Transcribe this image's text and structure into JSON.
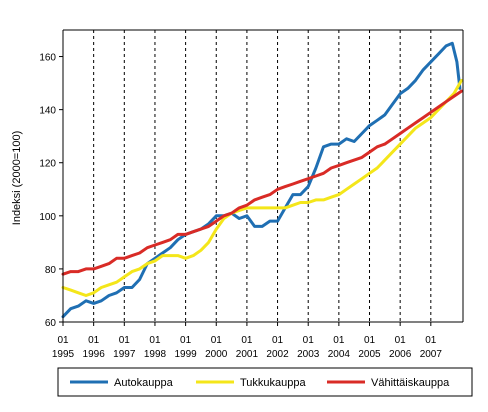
{
  "chart_data": {
    "type": "line",
    "ylabel": "Indeksi (2000=100)",
    "xlabel": "",
    "ylim": [
      60,
      170
    ],
    "yticks": [
      60,
      80,
      100,
      120,
      140,
      160
    ],
    "xlim": [
      1995.0,
      2008.05
    ],
    "x_ticks": [
      {
        "month": "01",
        "year": "1995"
      },
      {
        "month": "01",
        "year": "1996"
      },
      {
        "month": "01",
        "year": "1997"
      },
      {
        "month": "01",
        "year": "1998"
      },
      {
        "month": "01",
        "year": "1999"
      },
      {
        "month": "01",
        "year": "2000"
      },
      {
        "month": "01",
        "year": "2001"
      },
      {
        "month": "01",
        "year": "2002"
      },
      {
        "month": "01",
        "year": "2003"
      },
      {
        "month": "01",
        "year": "2004"
      },
      {
        "month": "01",
        "year": "2005"
      },
      {
        "month": "01",
        "year": "2006"
      },
      {
        "month": "01",
        "year": "2007"
      }
    ],
    "grid": "vertical dashed lines at each year",
    "legend_position": "bottom",
    "series": [
      {
        "name": "Autokauppa",
        "color": "#1f6fb3",
        "points": [
          [
            1995.0,
            62
          ],
          [
            1995.25,
            65
          ],
          [
            1995.5,
            66
          ],
          [
            1995.75,
            68
          ],
          [
            1996.0,
            67
          ],
          [
            1996.25,
            68
          ],
          [
            1996.5,
            70
          ],
          [
            1996.75,
            71
          ],
          [
            1997.0,
            73
          ],
          [
            1997.25,
            73
          ],
          [
            1997.5,
            76
          ],
          [
            1997.75,
            82
          ],
          [
            1998.0,
            84
          ],
          [
            1998.25,
            86
          ],
          [
            1998.5,
            88
          ],
          [
            1998.75,
            91
          ],
          [
            1999.0,
            93
          ],
          [
            1999.25,
            94
          ],
          [
            1999.5,
            95
          ],
          [
            1999.75,
            97
          ],
          [
            2000.0,
            100
          ],
          [
            2000.25,
            100
          ],
          [
            2000.5,
            101
          ],
          [
            2000.75,
            99
          ],
          [
            2001.0,
            100
          ],
          [
            2001.25,
            96
          ],
          [
            2001.5,
            96
          ],
          [
            2001.75,
            98
          ],
          [
            2002.0,
            98
          ],
          [
            2002.25,
            103
          ],
          [
            2002.5,
            108
          ],
          [
            2002.75,
            108
          ],
          [
            2003.0,
            111
          ],
          [
            2003.25,
            118
          ],
          [
            2003.5,
            126
          ],
          [
            2003.75,
            127
          ],
          [
            2004.0,
            127
          ],
          [
            2004.25,
            129
          ],
          [
            2004.5,
            128
          ],
          [
            2004.75,
            131
          ],
          [
            2005.0,
            134
          ],
          [
            2005.25,
            136
          ],
          [
            2005.5,
            138
          ],
          [
            2005.75,
            142
          ],
          [
            2006.0,
            146
          ],
          [
            2006.25,
            148
          ],
          [
            2006.5,
            151
          ],
          [
            2006.75,
            155
          ],
          [
            2007.0,
            158
          ],
          [
            2007.25,
            161
          ],
          [
            2007.5,
            164
          ],
          [
            2007.7,
            165
          ],
          [
            2007.85,
            158
          ],
          [
            2007.95,
            148
          ]
        ]
      },
      {
        "name": "Tukkukauppa",
        "color": "#f4e61a",
        "points": [
          [
            1995.0,
            73
          ],
          [
            1995.25,
            72
          ],
          [
            1995.5,
            71
          ],
          [
            1995.75,
            70
          ],
          [
            1996.0,
            71
          ],
          [
            1996.25,
            73
          ],
          [
            1996.5,
            74
          ],
          [
            1996.75,
            75
          ],
          [
            1997.0,
            77
          ],
          [
            1997.25,
            79
          ],
          [
            1997.5,
            80
          ],
          [
            1997.75,
            82
          ],
          [
            1998.0,
            83
          ],
          [
            1998.25,
            85
          ],
          [
            1998.5,
            85
          ],
          [
            1998.75,
            85
          ],
          [
            1999.0,
            84
          ],
          [
            1999.25,
            85
          ],
          [
            1999.5,
            87
          ],
          [
            1999.75,
            90
          ],
          [
            2000.0,
            95
          ],
          [
            2000.25,
            99
          ],
          [
            2000.5,
            101
          ],
          [
            2000.75,
            102
          ],
          [
            2001.0,
            103
          ],
          [
            2001.25,
            103
          ],
          [
            2001.5,
            103
          ],
          [
            2001.75,
            103
          ],
          [
            2002.0,
            103
          ],
          [
            2002.25,
            103
          ],
          [
            2002.5,
            104
          ],
          [
            2002.75,
            105
          ],
          [
            2003.0,
            105
          ],
          [
            2003.25,
            106
          ],
          [
            2003.5,
            106
          ],
          [
            2003.75,
            107
          ],
          [
            2004.0,
            108
          ],
          [
            2004.25,
            110
          ],
          [
            2004.5,
            112
          ],
          [
            2004.75,
            114
          ],
          [
            2005.0,
            116
          ],
          [
            2005.25,
            118
          ],
          [
            2005.5,
            121
          ],
          [
            2005.75,
            124
          ],
          [
            2006.0,
            127
          ],
          [
            2006.25,
            130
          ],
          [
            2006.5,
            133
          ],
          [
            2006.75,
            135
          ],
          [
            2007.0,
            137
          ],
          [
            2007.25,
            140
          ],
          [
            2007.5,
            143
          ],
          [
            2007.75,
            146
          ],
          [
            2008.0,
            151
          ]
        ]
      },
      {
        "name": "Vähittäiskauppa",
        "color": "#d92b26",
        "points": [
          [
            1995.0,
            78
          ],
          [
            1995.25,
            79
          ],
          [
            1995.5,
            79
          ],
          [
            1995.75,
            80
          ],
          [
            1996.0,
            80
          ],
          [
            1996.25,
            81
          ],
          [
            1996.5,
            82
          ],
          [
            1996.75,
            84
          ],
          [
            1997.0,
            84
          ],
          [
            1997.25,
            85
          ],
          [
            1997.5,
            86
          ],
          [
            1997.75,
            88
          ],
          [
            1998.0,
            89
          ],
          [
            1998.25,
            90
          ],
          [
            1998.5,
            91
          ],
          [
            1998.75,
            93
          ],
          [
            1999.0,
            93
          ],
          [
            1999.25,
            94
          ],
          [
            1999.5,
            95
          ],
          [
            1999.75,
            96
          ],
          [
            2000.0,
            98
          ],
          [
            2000.25,
            100
          ],
          [
            2000.5,
            101
          ],
          [
            2000.75,
            103
          ],
          [
            2001.0,
            104
          ],
          [
            2001.25,
            106
          ],
          [
            2001.5,
            107
          ],
          [
            2001.75,
            108
          ],
          [
            2002.0,
            110
          ],
          [
            2002.25,
            111
          ],
          [
            2002.5,
            112
          ],
          [
            2002.75,
            113
          ],
          [
            2003.0,
            114
          ],
          [
            2003.25,
            115
          ],
          [
            2003.5,
            116
          ],
          [
            2003.75,
            118
          ],
          [
            2004.0,
            119
          ],
          [
            2004.25,
            120
          ],
          [
            2004.5,
            121
          ],
          [
            2004.75,
            122
          ],
          [
            2005.0,
            124
          ],
          [
            2005.25,
            126
          ],
          [
            2005.5,
            127
          ],
          [
            2005.75,
            129
          ],
          [
            2006.0,
            131
          ],
          [
            2006.25,
            133
          ],
          [
            2006.5,
            135
          ],
          [
            2006.75,
            137
          ],
          [
            2007.0,
            139
          ],
          [
            2007.25,
            141
          ],
          [
            2007.5,
            143
          ],
          [
            2007.75,
            145
          ],
          [
            2008.0,
            147
          ]
        ]
      }
    ]
  }
}
